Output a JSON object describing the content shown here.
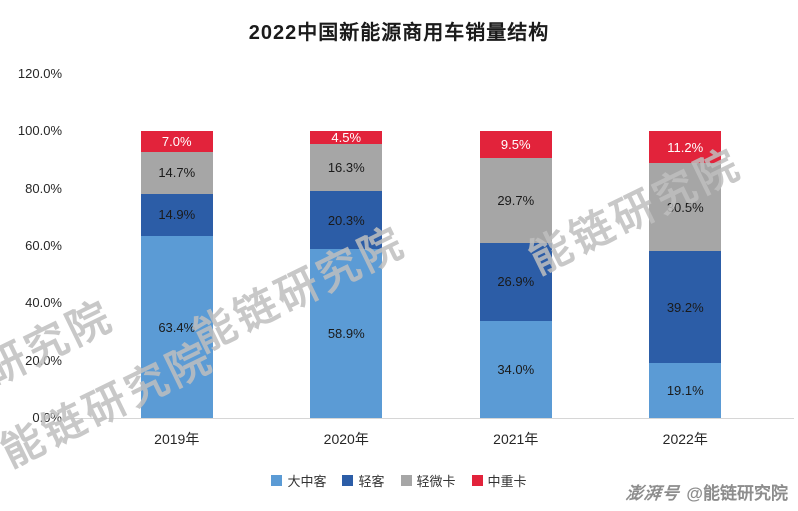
{
  "title": "2022中国新能源商用车销量结构",
  "chart_data": {
    "type": "bar",
    "stacked": true,
    "title": "2022中国新能源商用车销量结构",
    "categories": [
      "2019年",
      "2020年",
      "2021年",
      "2022年"
    ],
    "series": [
      {
        "name": "大中客",
        "color": "#5B9BD5",
        "label_color": "#1A1A1A",
        "values": [
          63.4,
          58.9,
          34.0,
          19.1
        ]
      },
      {
        "name": "轻客",
        "color": "#2C5DA7",
        "label_color": "#1A1A1A",
        "values": [
          14.9,
          20.3,
          26.9,
          39.2
        ]
      },
      {
        "name": "轻微卡",
        "color": "#A6A6A6",
        "label_color": "#1A1A1A",
        "values": [
          14.7,
          16.3,
          29.7,
          30.5
        ]
      },
      {
        "name": "中重卡",
        "color": "#E2233B",
        "label_color": "#FFFFFF",
        "values": [
          7.0,
          4.5,
          9.5,
          11.2
        ]
      }
    ],
    "y_axis": {
      "max": 120,
      "ticks": [
        {
          "label": "0.0%",
          "value": 0
        },
        {
          "label": "20.0%",
          "value": 20
        },
        {
          "label": "40.0%",
          "value": 40
        },
        {
          "label": "60.0%",
          "value": 60
        },
        {
          "label": "80.0%",
          "value": 80
        },
        {
          "label": "100.0%",
          "value": 100
        },
        {
          "label": "120.0%",
          "value": 120
        }
      ]
    },
    "value_suffix": "%",
    "legend_position": "bottom",
    "grid": false
  },
  "watermark": {
    "text": "能链研究院"
  },
  "footer": {
    "brand": "澎湃号",
    "account": "@能链研究院"
  }
}
